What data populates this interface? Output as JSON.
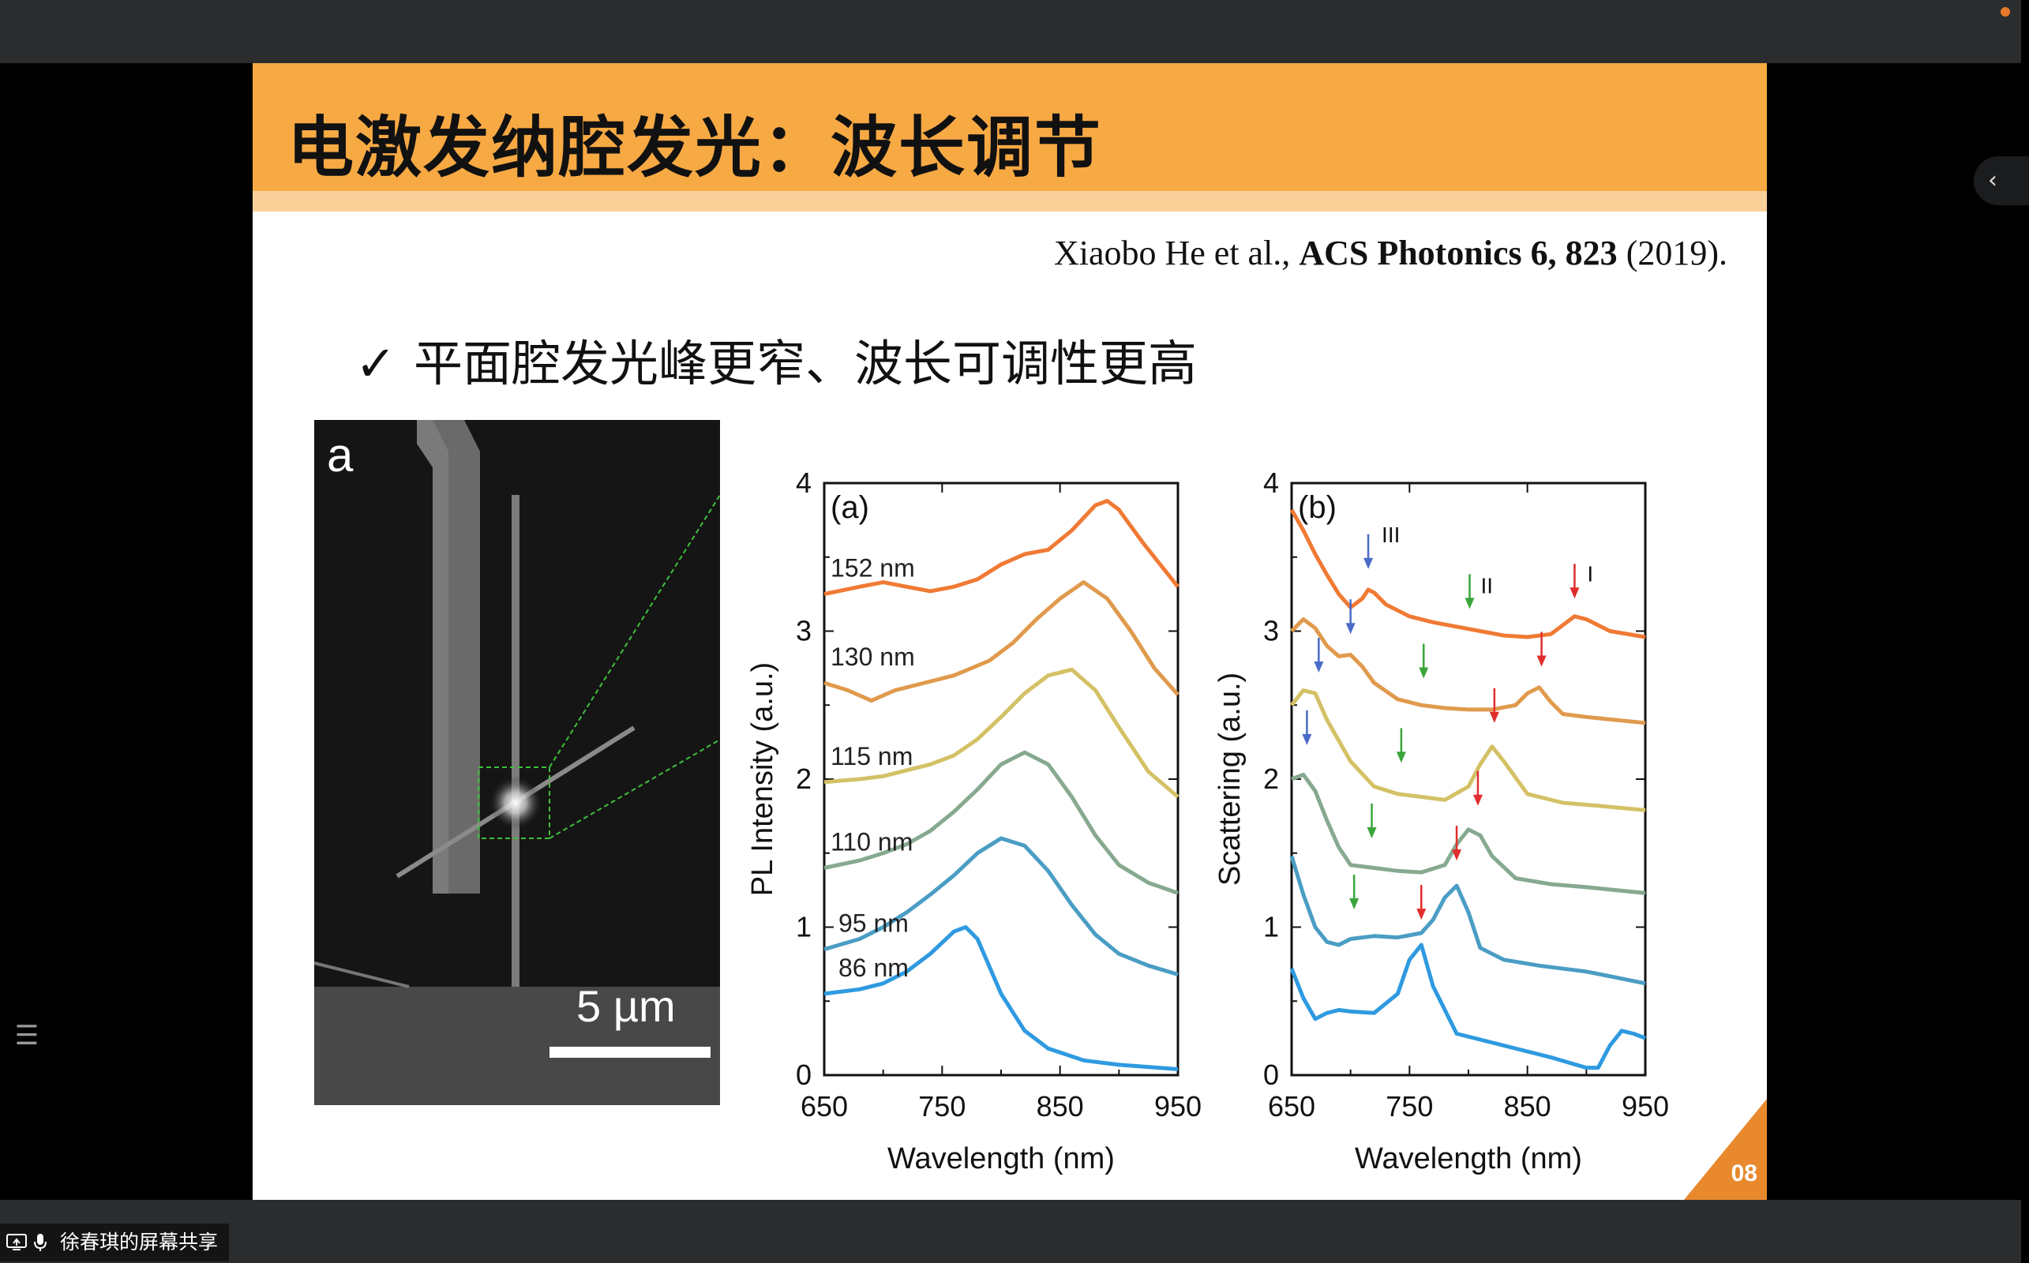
{
  "slide": {
    "title": "电激发纳腔发光：波长调节",
    "citation_authors": "Xiaobo He et al., ",
    "citation_journal": "ACS Photonics 6, 823",
    "citation_year": " (2019).",
    "bullet_check": "✓",
    "bullet_text": "平面腔发光峰更窄、波长可调性更高",
    "sem_panel_label": "a",
    "sem_scale_label": "5 µm",
    "page_number": "08"
  },
  "colors": {
    "header": "#f7a944",
    "header_band": "#fbd19a",
    "accent_corner": "#e8892e",
    "arrow_blue": "#4a6cc8",
    "arrow_green": "#3aa53a",
    "arrow_red": "#e02d2d"
  },
  "status": {
    "share_label": "徐春琪的屏幕共享"
  },
  "icons": {
    "collapse": "chevron-left-icon",
    "list": "list-icon",
    "share": "screen-share-icon",
    "mic": "mic-icon"
  },
  "chart_data": [
    {
      "type": "line",
      "panel_label": "(a)",
      "xlabel": "Wavelength (nm)",
      "ylabel": "PL Intensity (a.u.)",
      "xlim": [
        650,
        950
      ],
      "ylim": [
        0,
        4
      ],
      "xticks": [
        650,
        750,
        850,
        950
      ],
      "yticks": [
        0,
        1,
        2,
        3,
        4
      ],
      "series": [
        {
          "name": "86 nm",
          "color": "#2f9ae0",
          "x": [
            650,
            680,
            700,
            720,
            740,
            760,
            770,
            780,
            800,
            820,
            840,
            870,
            900,
            950
          ],
          "y": [
            0.55,
            0.58,
            0.62,
            0.7,
            0.82,
            0.97,
            1.0,
            0.92,
            0.55,
            0.3,
            0.18,
            0.1,
            0.07,
            0.04
          ]
        },
        {
          "name": "95 nm",
          "color": "#4a9dc4",
          "x": [
            650,
            680,
            700,
            720,
            740,
            760,
            780,
            800,
            820,
            840,
            860,
            880,
            900,
            925,
            950
          ],
          "y": [
            0.85,
            0.92,
            1.0,
            1.1,
            1.22,
            1.35,
            1.5,
            1.6,
            1.55,
            1.38,
            1.15,
            0.95,
            0.82,
            0.74,
            0.68
          ]
        },
        {
          "name": "110 nm",
          "color": "#86a98f",
          "x": [
            650,
            680,
            700,
            720,
            740,
            760,
            780,
            800,
            820,
            840,
            860,
            880,
            900,
            925,
            950
          ],
          "y": [
            1.4,
            1.45,
            1.5,
            1.56,
            1.65,
            1.78,
            1.93,
            2.1,
            2.18,
            2.1,
            1.88,
            1.62,
            1.42,
            1.3,
            1.23
          ]
        },
        {
          "name": "115 nm",
          "color": "#d4c166",
          "x": [
            650,
            680,
            700,
            720,
            740,
            760,
            780,
            800,
            820,
            840,
            860,
            880,
            900,
            925,
            950
          ],
          "y": [
            1.98,
            2.0,
            2.02,
            2.06,
            2.1,
            2.16,
            2.27,
            2.42,
            2.58,
            2.7,
            2.74,
            2.6,
            2.35,
            2.05,
            1.88
          ]
        },
        {
          "name": "130 nm",
          "color": "#e09a4d",
          "x": [
            650,
            670,
            690,
            710,
            730,
            760,
            790,
            810,
            830,
            850,
            870,
            890,
            910,
            930,
            950
          ],
          "y": [
            2.65,
            2.6,
            2.53,
            2.6,
            2.64,
            2.7,
            2.8,
            2.92,
            3.08,
            3.22,
            3.33,
            3.22,
            3.0,
            2.75,
            2.57
          ]
        },
        {
          "name": "152 nm",
          "color": "#f07a34",
          "x": [
            650,
            680,
            700,
            720,
            740,
            760,
            780,
            800,
            820,
            840,
            860,
            880,
            890,
            900,
            920,
            950
          ],
          "y": [
            3.25,
            3.3,
            3.33,
            3.3,
            3.27,
            3.3,
            3.35,
            3.45,
            3.52,
            3.55,
            3.68,
            3.85,
            3.88,
            3.82,
            3.6,
            3.3
          ]
        }
      ]
    },
    {
      "type": "line",
      "panel_label": "(b)",
      "xlabel": "Wavelength (nm)",
      "ylabel": "Scattering (a.u.)",
      "xlim": [
        650,
        950
      ],
      "ylim": [
        0,
        4
      ],
      "xticks": [
        650,
        750,
        850,
        950
      ],
      "yticks": [
        0,
        1,
        2,
        3,
        4
      ],
      "mode_labels": [
        "III",
        "II",
        "I"
      ],
      "series": [
        {
          "color": "#2f9ae0",
          "x": [
            650,
            660,
            670,
            680,
            690,
            700,
            720,
            740,
            750,
            760,
            770,
            790,
            830,
            870,
            900,
            910,
            920,
            930,
            940,
            950
          ],
          "y": [
            0.72,
            0.52,
            0.38,
            0.42,
            0.44,
            0.43,
            0.42,
            0.55,
            0.78,
            0.88,
            0.6,
            0.28,
            0.2,
            0.12,
            0.05,
            0.05,
            0.2,
            0.3,
            0.28,
            0.25
          ]
        },
        {
          "color": "#4a9dc4",
          "x": [
            650,
            660,
            670,
            680,
            690,
            700,
            720,
            740,
            760,
            770,
            780,
            790,
            800,
            810,
            830,
            860,
            900,
            950
          ],
          "y": [
            1.48,
            1.22,
            1.0,
            0.9,
            0.88,
            0.92,
            0.94,
            0.93,
            0.96,
            1.05,
            1.2,
            1.28,
            1.1,
            0.86,
            0.78,
            0.74,
            0.7,
            0.62
          ]
        },
        {
          "color": "#86a98f",
          "x": [
            650,
            660,
            670,
            680,
            690,
            700,
            720,
            740,
            760,
            780,
            790,
            800,
            810,
            820,
            840,
            870,
            900,
            950
          ],
          "y": [
            2.0,
            2.03,
            1.92,
            1.72,
            1.54,
            1.42,
            1.4,
            1.38,
            1.37,
            1.42,
            1.56,
            1.66,
            1.62,
            1.48,
            1.33,
            1.29,
            1.27,
            1.23
          ]
        },
        {
          "color": "#d4c166",
          "x": [
            650,
            660,
            670,
            680,
            700,
            720,
            740,
            760,
            780,
            800,
            810,
            820,
            830,
            850,
            880,
            910,
            950
          ],
          "y": [
            2.5,
            2.6,
            2.58,
            2.4,
            2.12,
            1.95,
            1.9,
            1.88,
            1.86,
            1.95,
            2.1,
            2.22,
            2.12,
            1.9,
            1.84,
            1.82,
            1.79
          ]
        },
        {
          "color": "#e09a4d",
          "x": [
            650,
            660,
            670,
            680,
            690,
            700,
            710,
            720,
            740,
            760,
            780,
            800,
            820,
            840,
            850,
            860,
            870,
            880,
            900,
            950
          ],
          "y": [
            3.0,
            3.08,
            3.02,
            2.9,
            2.83,
            2.84,
            2.76,
            2.65,
            2.54,
            2.5,
            2.48,
            2.47,
            2.47,
            2.5,
            2.58,
            2.62,
            2.52,
            2.44,
            2.42,
            2.38
          ]
        },
        {
          "color": "#f07a34",
          "x": [
            650,
            660,
            670,
            680,
            690,
            700,
            710,
            715,
            720,
            730,
            750,
            770,
            790,
            810,
            830,
            850,
            870,
            880,
            890,
            900,
            920,
            950
          ],
          "y": [
            3.82,
            3.68,
            3.52,
            3.38,
            3.25,
            3.16,
            3.22,
            3.28,
            3.26,
            3.18,
            3.1,
            3.06,
            3.03,
            3.0,
            2.97,
            2.96,
            2.98,
            3.04,
            3.1,
            3.08,
            3.0,
            2.96
          ]
        }
      ],
      "arrows": [
        {
          "color": "blue",
          "x": 715,
          "y": 3.42
        },
        {
          "color": "green",
          "x": 801,
          "y": 3.15
        },
        {
          "color": "red",
          "x": 890,
          "y": 3.22
        },
        {
          "color": "blue",
          "x": 700,
          "y": 2.98
        },
        {
          "color": "green",
          "x": 762,
          "y": 2.68
        },
        {
          "color": "red",
          "x": 862,
          "y": 2.76
        },
        {
          "color": "blue",
          "x": 673,
          "y": 2.72
        },
        {
          "color": "green",
          "x": 743,
          "y": 2.11
        },
        {
          "color": "red",
          "x": 822,
          "y": 2.38
        },
        {
          "color": "blue",
          "x": 663,
          "y": 2.23
        },
        {
          "color": "green",
          "x": 718,
          "y": 1.6
        },
        {
          "color": "red",
          "x": 808,
          "y": 1.82
        },
        {
          "color": "green",
          "x": 703,
          "y": 1.12
        },
        {
          "color": "red",
          "x": 790,
          "y": 1.45
        },
        {
          "color": "red",
          "x": 760,
          "y": 1.05
        }
      ]
    }
  ]
}
